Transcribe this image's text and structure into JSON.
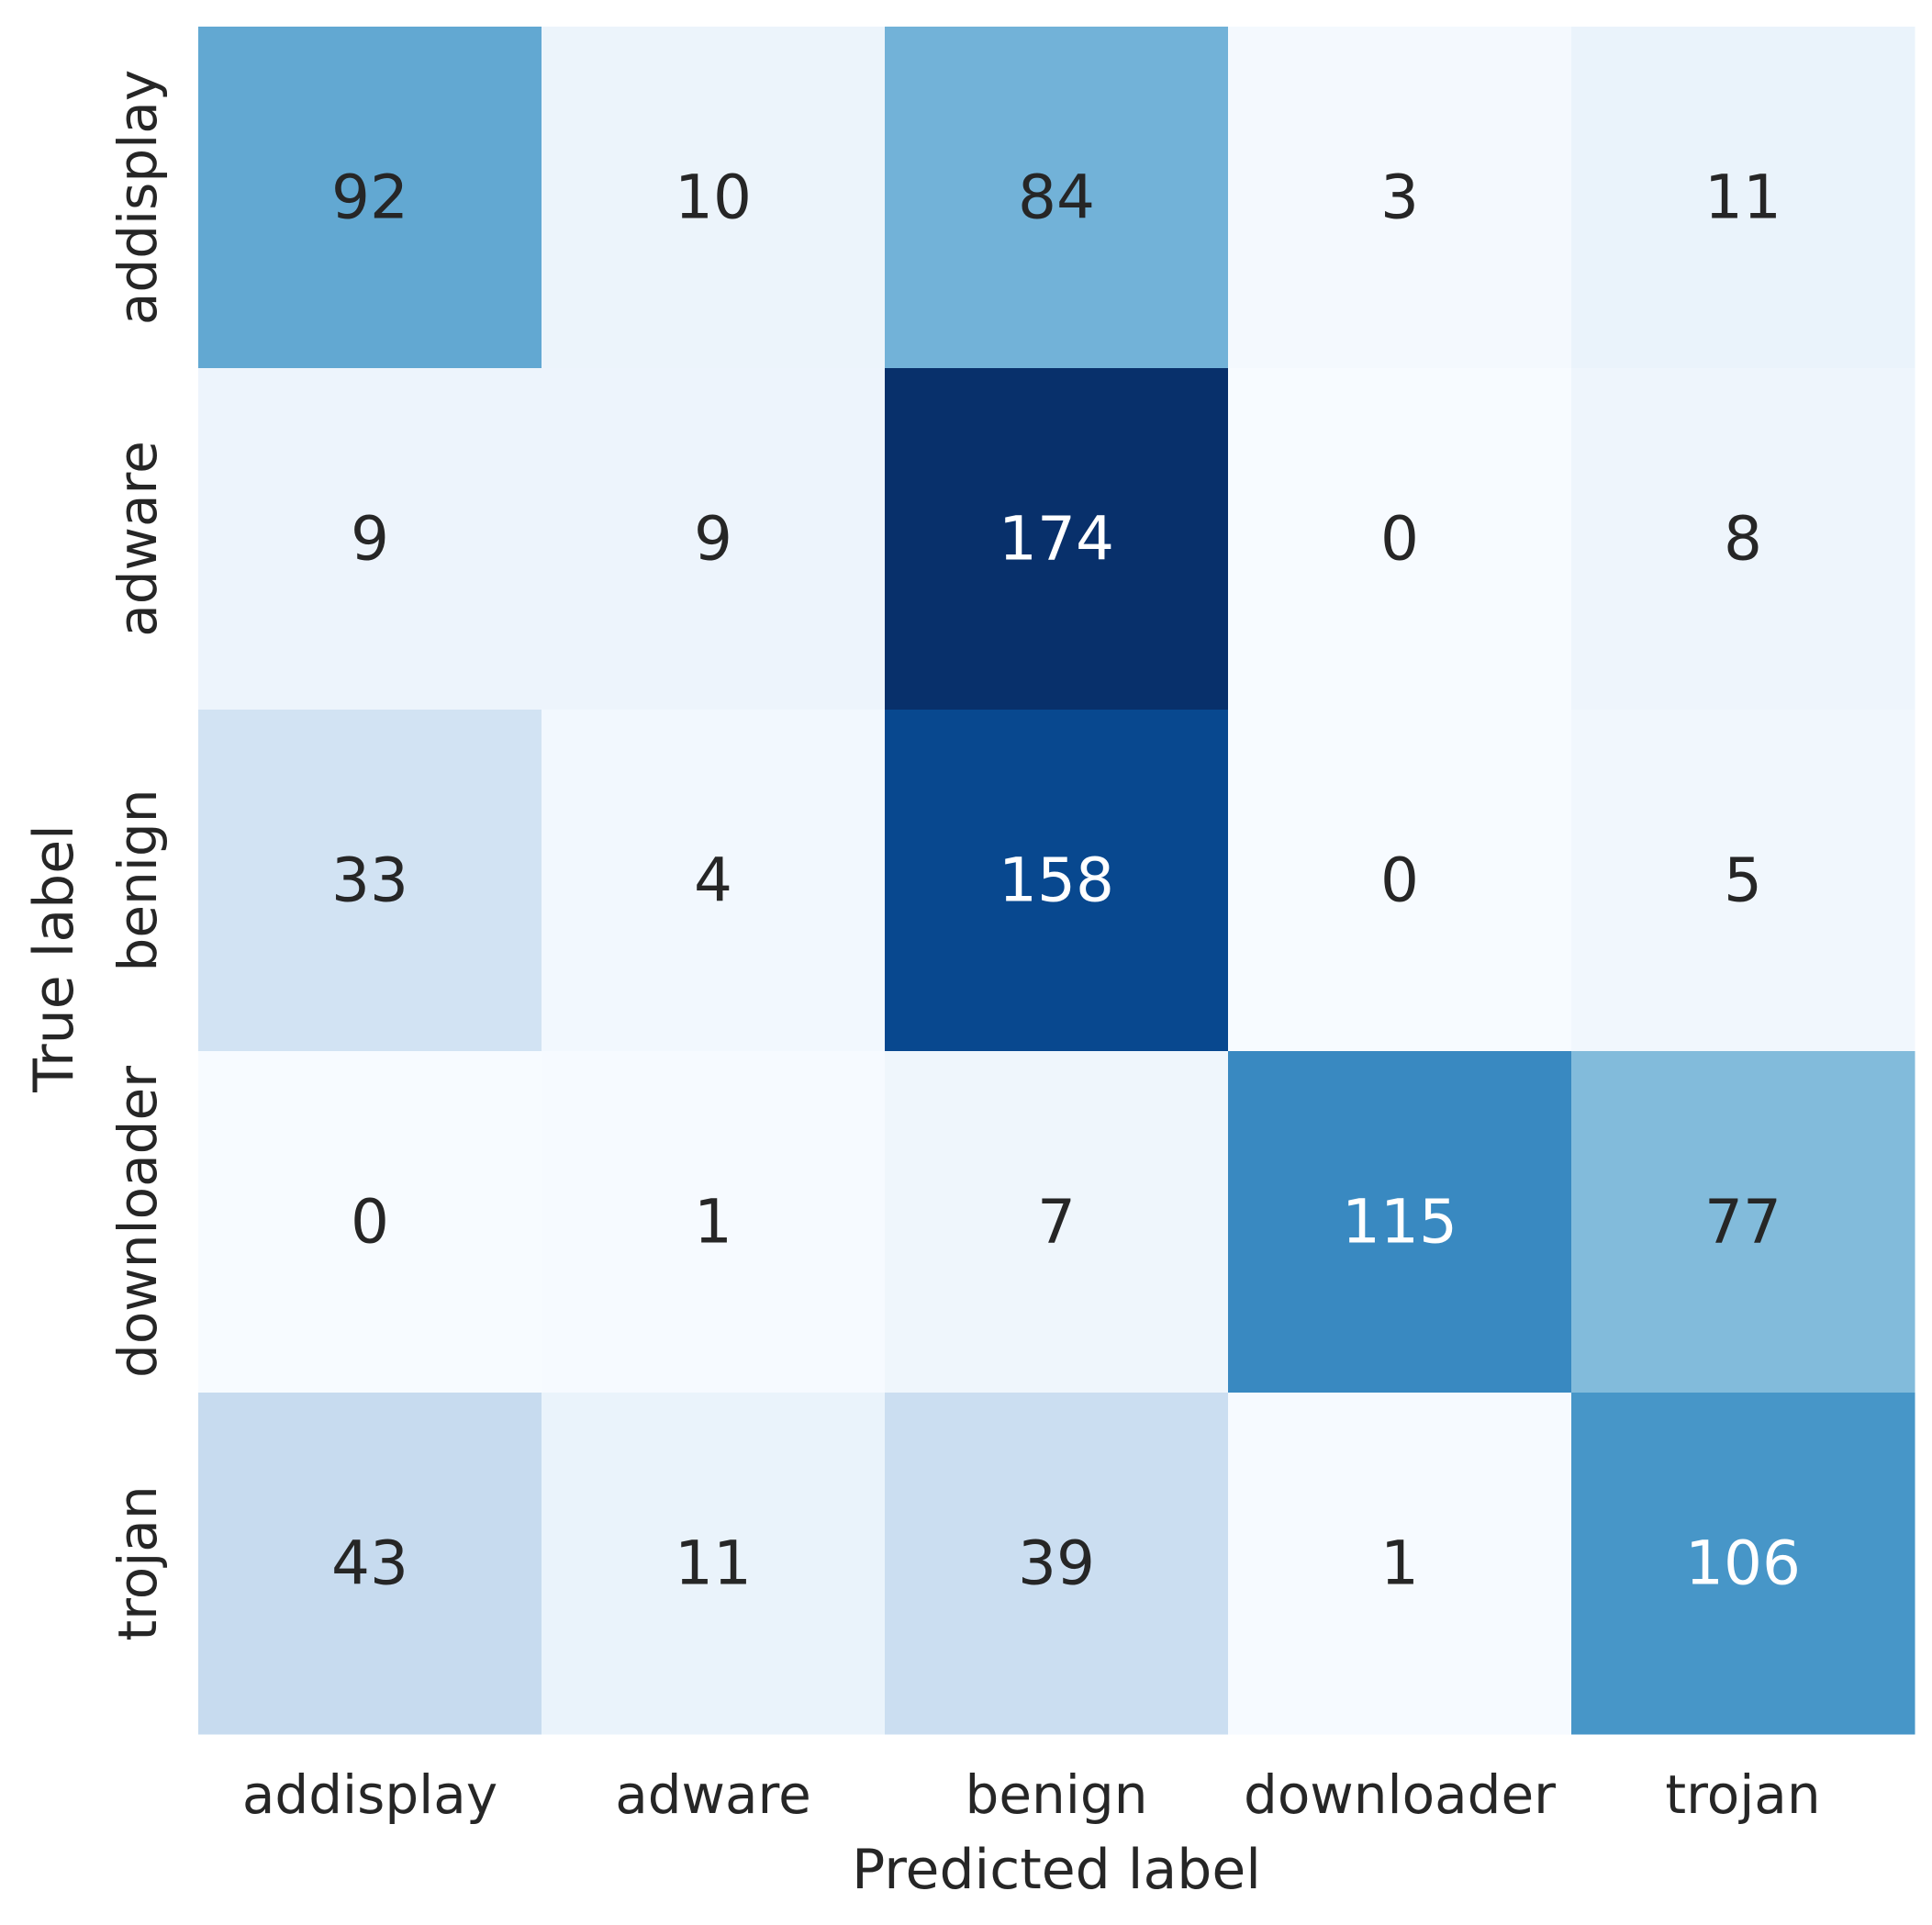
{
  "chart_data": {
    "type": "heatmap",
    "title": "",
    "xlabel": "Predicted label",
    "ylabel": "True label",
    "x_categories": [
      "addisplay",
      "adware",
      "benign",
      "downloader",
      "trojan"
    ],
    "y_categories": [
      "addisplay",
      "adware",
      "benign",
      "downloader",
      "trojan"
    ],
    "matrix": [
      [
        92,
        10,
        84,
        3,
        11
      ],
      [
        9,
        9,
        174,
        0,
        8
      ],
      [
        33,
        4,
        158,
        0,
        5
      ],
      [
        0,
        1,
        7,
        115,
        77
      ],
      [
        43,
        11,
        39,
        1,
        106
      ]
    ],
    "value_range": [
      0,
      174
    ],
    "colormap": "Blues",
    "colormap_stops": [
      "#f7fbff",
      "#deebf7",
      "#c6dbef",
      "#9ecae1",
      "#6baed6",
      "#4292c6",
      "#2171b5",
      "#08519c",
      "#08306b"
    ],
    "text_color_dark": "#262626",
    "text_color_light": "#ffffff",
    "colorbar": false,
    "grid": false
  }
}
